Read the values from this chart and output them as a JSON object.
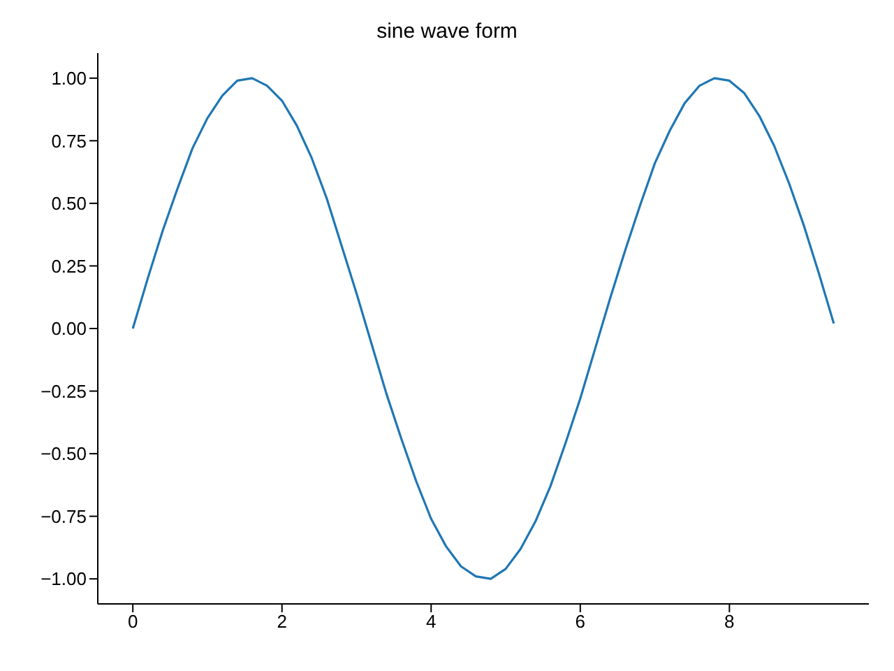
{
  "chart_data": {
    "type": "line",
    "title": "sine wave form",
    "x": [
      0,
      0.2,
      0.4,
      0.6,
      0.8,
      1.0,
      1.2,
      1.4,
      1.6,
      1.8,
      2.0,
      2.2,
      2.4,
      2.6,
      2.8,
      3.0,
      3.2,
      3.4,
      3.6,
      3.8,
      4.0,
      4.2,
      4.4,
      4.6,
      4.8,
      5.0,
      5.2,
      5.4,
      5.6,
      5.8,
      6.0,
      6.2,
      6.4,
      6.6,
      6.8,
      7.0,
      7.2,
      7.4,
      7.6,
      7.8,
      8.0,
      8.2,
      8.4,
      8.6,
      8.8,
      9.0,
      9.2,
      9.4
    ],
    "series": [
      {
        "color": "#1f77b4",
        "values": [
          0,
          0.2,
          0.39,
          0.56,
          0.72,
          0.84,
          0.93,
          0.99,
          1.0,
          0.97,
          0.91,
          0.81,
          0.68,
          0.52,
          0.33,
          0.14,
          -0.06,
          -0.26,
          -0.44,
          -0.61,
          -0.76,
          -0.87,
          -0.95,
          -0.99,
          -1.0,
          -0.96,
          -0.88,
          -0.77,
          -0.63,
          -0.46,
          -0.28,
          -0.08,
          0.12,
          0.31,
          0.49,
          0.66,
          0.79,
          0.9,
          0.97,
          1.0,
          0.99,
          0.94,
          0.85,
          0.73,
          0.58,
          0.41,
          0.22,
          0.02
        ]
      }
    ],
    "xlim": [
      -0.47,
      9.87
    ],
    "xticks": [
      0,
      2,
      4,
      6,
      8
    ],
    "ylim": [
      -1.1,
      1.1
    ],
    "yticks": [
      {
        "value": -1,
        "label": "−1.00"
      },
      {
        "value": -0.75,
        "label": "−0.75"
      },
      {
        "value": -0.5,
        "label": "−0.50"
      },
      {
        "value": -0.25,
        "label": "−0.25"
      },
      {
        "value": 0,
        "label": "0.00"
      },
      {
        "value": 0.25,
        "label": "0.25"
      },
      {
        "value": 0.5,
        "label": "0.50"
      },
      {
        "value": 0.75,
        "label": "0.75"
      },
      {
        "value": 1,
        "label": "1.00"
      }
    ],
    "grid": false,
    "legend": false,
    "marker": "none",
    "line_style": "solid"
  }
}
